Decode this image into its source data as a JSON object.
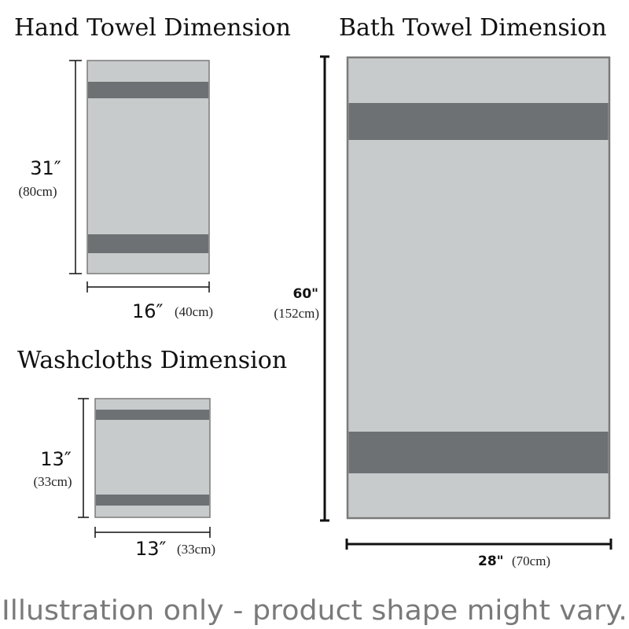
{
  "hand_towel": {
    "title": "Hand Towel Dimension",
    "height_in": "31″",
    "height_cm": "(80cm)",
    "width_in": "16″",
    "width_cm": "(40cm)"
  },
  "bath_towel": {
    "title": "Bath Towel Dimension",
    "height_in": "60\"",
    "height_cm": "(152cm)",
    "width_in": "28\"",
    "width_cm": "(70cm)"
  },
  "washcloth": {
    "title": "Washcloths Dimension",
    "height_in": "13″",
    "height_cm": "(33cm)",
    "width_in": "13″",
    "width_cm": "(33cm)"
  },
  "footer": "Illustration only - product shape might vary.",
  "colors": {
    "towel_body": "#c8cbcc",
    "towel_stripe": "#6e7173",
    "towel_border": "#7a7a7a",
    "dimension_line": "#111111"
  }
}
